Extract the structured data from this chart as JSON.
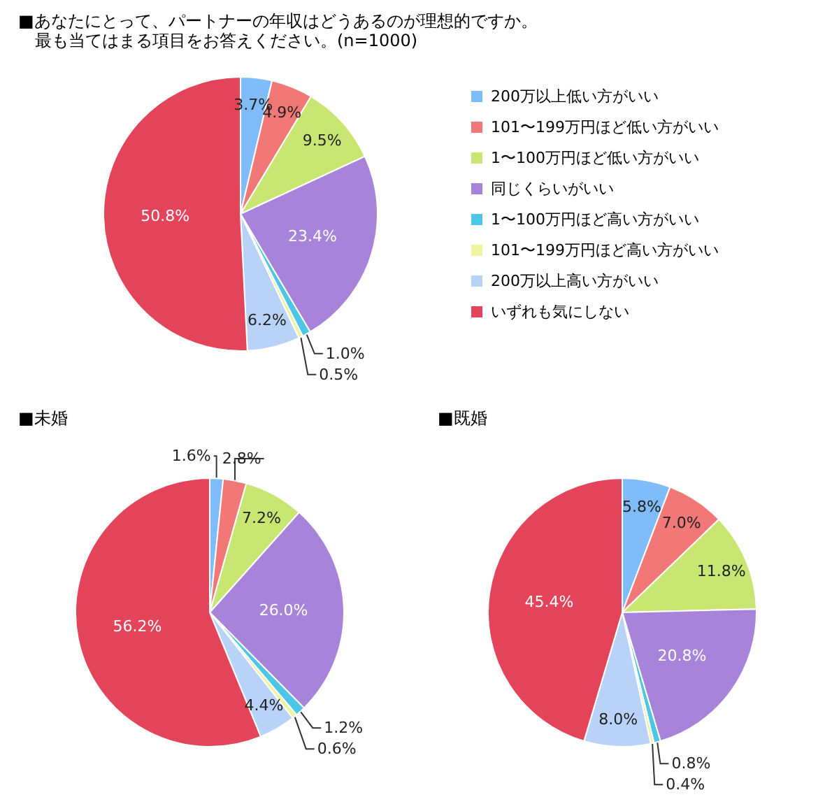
{
  "chart_data": [
    {
      "type": "pie",
      "title": "■あなたにとって、パートナーの年収はどうあるのが理想的ですか。",
      "subtitle": "最も当てはまる項目をお答えください。(n=1000)",
      "categories": [
        "200万以上低い方がいい",
        "101〜199万円ほど低い方がいい",
        "1〜100万円ほど低い方がいい",
        "同じくらいがいい",
        "1〜100万円ほど高い方がいい",
        "101〜199万円ほど高い方がいい",
        "200万以上高い方がいい",
        "いずれも気にしない"
      ],
      "values": [
        3.7,
        4.9,
        9.5,
        23.4,
        1.0,
        0.5,
        6.2,
        50.8
      ],
      "value_labels": [
        "3.7%",
        "4.9%",
        "9.5%",
        "23.4%",
        "1.0%",
        "0.5%",
        "6.2%",
        "50.8%"
      ],
      "colors": [
        "#7fbcf9",
        "#f27777",
        "#c9e672",
        "#a883da",
        "#4cc6e6",
        "#eff4a0",
        "#b9d3f8",
        "#e44459"
      ],
      "legend": "right"
    },
    {
      "type": "pie",
      "title": "■未婚",
      "categories": [
        null,
        null,
        null,
        null,
        null,
        null,
        null,
        null
      ],
      "values": [
        1.6,
        2.8,
        7.2,
        26.0,
        1.2,
        0.6,
        4.4,
        56.2
      ],
      "value_labels": [
        "1.6%",
        "2.8%",
        "7.2%",
        "26.0%",
        "1.2%",
        "0.6%",
        "4.4%",
        "56.2%"
      ],
      "colors": [
        "#7fbcf9",
        "#f27777",
        "#c9e672",
        "#a883da",
        "#4cc6e6",
        "#eff4a0",
        "#b9d3f8",
        "#e44459"
      ]
    },
    {
      "type": "pie",
      "title": "■既婚",
      "categories": [
        null,
        null,
        null,
        null,
        null,
        null,
        null,
        null
      ],
      "values": [
        5.8,
        7.0,
        11.8,
        20.8,
        0.8,
        0.4,
        8.0,
        45.4
      ],
      "value_labels": [
        "5.8%",
        "7.0%",
        "11.8%",
        "20.8%",
        "0.8%",
        "0.4%",
        "8.0%",
        "45.4%"
      ],
      "colors": [
        "#7fbcf9",
        "#f27777",
        "#c9e672",
        "#a883da",
        "#4cc6e6",
        "#eff4a0",
        "#b9d3f8",
        "#e44459"
      ]
    }
  ]
}
